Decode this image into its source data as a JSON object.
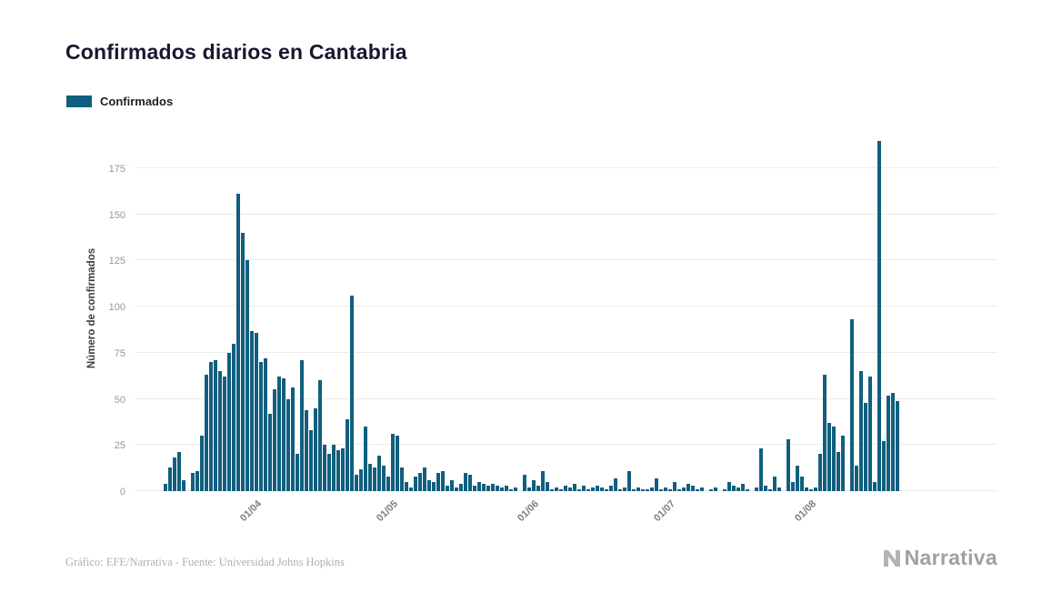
{
  "title": "Confirmados diarios en Cantabria",
  "legend": {
    "label": "Confirmados",
    "color": "#115f7e"
  },
  "footer": {
    "credit": "Gráfico: EFE/Narrativa - Fuente: Universidad Johns Hopkins"
  },
  "branding": {
    "name": "Narrativa"
  },
  "chart_data": {
    "type": "bar",
    "title": "Confirmados diarios en Cantabria",
    "series_name": "Confirmados",
    "xlabel": "",
    "ylabel": "Número de confirmados",
    "ylim": [
      0,
      190
    ],
    "bar_color": "#115f7e",
    "grid": true,
    "legend_position": "top-left",
    "y_ticks": [
      0,
      25,
      50,
      75,
      100,
      125,
      150,
      175
    ],
    "x_ticks": [
      {
        "label": "01/04",
        "index": 20
      },
      {
        "label": "01/05",
        "index": 50
      },
      {
        "label": "01/06",
        "index": 81
      },
      {
        "label": "01/07",
        "index": 111
      },
      {
        "label": "01/08",
        "index": 142
      }
    ],
    "values": [
      4,
      13,
      18,
      21,
      6,
      0,
      10,
      11,
      30,
      63,
      70,
      71,
      65,
      62,
      75,
      80,
      161,
      140,
      125,
      87,
      86,
      70,
      72,
      42,
      55,
      62,
      61,
      50,
      56,
      20,
      71,
      44,
      33,
      45,
      60,
      25,
      20,
      25,
      22,
      23,
      39,
      106,
      9,
      12,
      35,
      15,
      13,
      19,
      14,
      8,
      31,
      30,
      13,
      5,
      2,
      8,
      10,
      13,
      6,
      5,
      10,
      11,
      3,
      6,
      2,
      4,
      10,
      9,
      3,
      5,
      4,
      3,
      4,
      3,
      2,
      3,
      1,
      2,
      0,
      9,
      2,
      6,
      3,
      11,
      5,
      1,
      2,
      1,
      3,
      2,
      4,
      1,
      3,
      1,
      2,
      3,
      2,
      1,
      3,
      7,
      1,
      2,
      11,
      1,
      2,
      1,
      1,
      2,
      7,
      1,
      2,
      1,
      5,
      1,
      2,
      4,
      3,
      1,
      2,
      0,
      1,
      2,
      0,
      1,
      5,
      3,
      2,
      4,
      1,
      0,
      2,
      23,
      3,
      1,
      8,
      2,
      0,
      28,
      5,
      14,
      8,
      2,
      1,
      2,
      20,
      63,
      37,
      35,
      21,
      30,
      0,
      93,
      14,
      65,
      48,
      62,
      5,
      190,
      27,
      52,
      53,
      49
    ]
  }
}
